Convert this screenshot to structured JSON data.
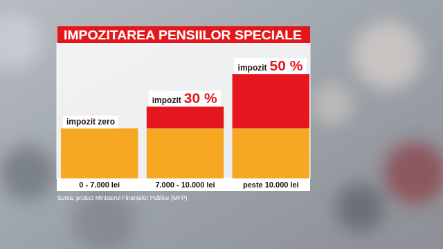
{
  "chart_data": {
    "type": "bar",
    "title": "IMPOZITAREA PENSIILOR SPECIALE",
    "categories": [
      "0 - 7.000 lei",
      "7.000 - 10.000 lei",
      "peste 10.000 lei"
    ],
    "series": [
      {
        "color": "#f7a823",
        "values": [
          37,
          37,
          37
        ]
      },
      {
        "color": "#e5161d",
        "values": [
          0,
          16,
          40
        ]
      }
    ],
    "stacked": true,
    "ylim": [
      0,
      100
    ],
    "grid": false,
    "tick_labels": "x",
    "annotations": [
      [
        "impozit zero"
      ],
      [
        "impozit",
        "30 %"
      ],
      [
        "impozit",
        "50 %"
      ]
    ],
    "source": "Sursa: proiect Ministerul Finanțelor Publice (MFP)"
  }
}
